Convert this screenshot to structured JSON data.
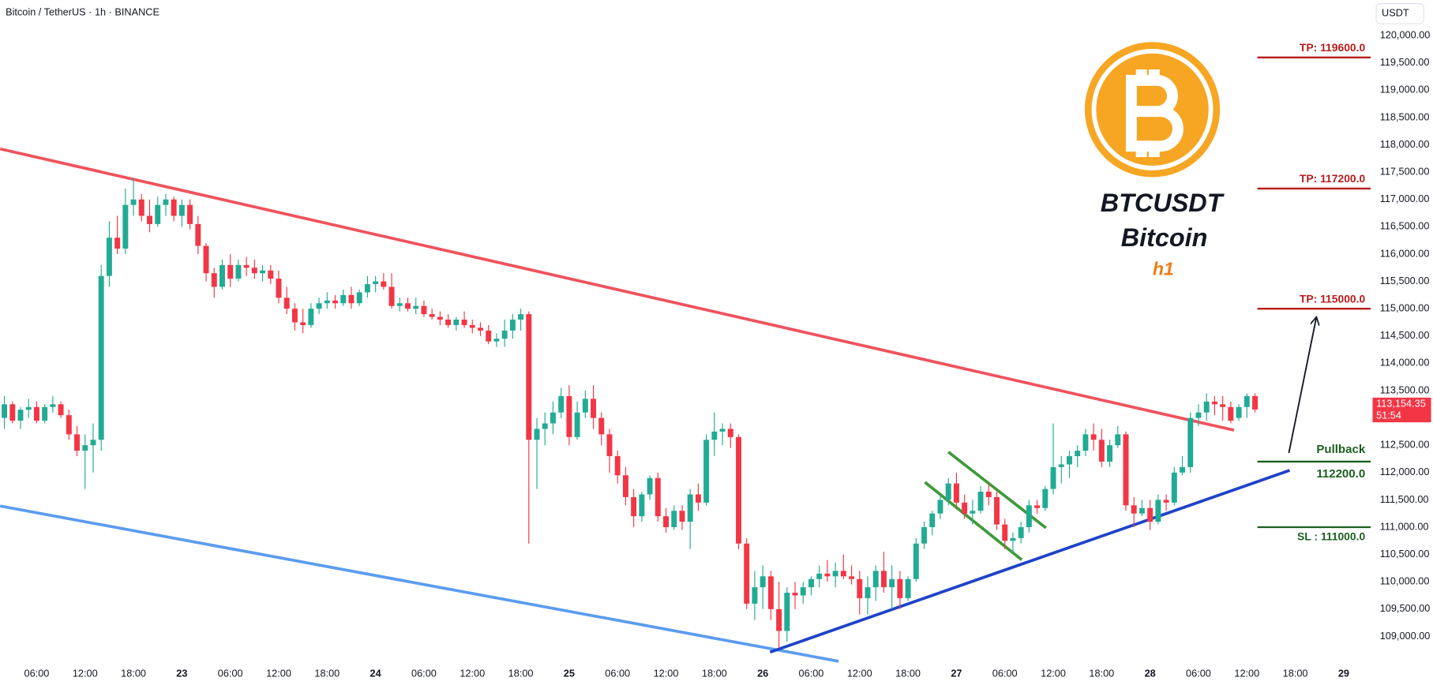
{
  "chart_data": {
    "type": "candlestick",
    "title": "Bitcoin / TetherUS · 1h · BINANCE",
    "currency": "USDT",
    "up_color": "#22ab94",
    "down_color": "#f23645",
    "xlim": [
      1.47,
      171.35
    ],
    "ylim": [
      108495,
      120652
    ],
    "grid": false,
    "xticks": [
      {
        "value": 6,
        "label": "06:00"
      },
      {
        "value": 12,
        "label": "12:00"
      },
      {
        "value": 18,
        "label": "18:00"
      },
      {
        "value": 24,
        "label": "23"
      },
      {
        "value": 30,
        "label": "06:00"
      },
      {
        "value": 36,
        "label": "12:00"
      },
      {
        "value": 42,
        "label": "18:00"
      },
      {
        "value": 48,
        "label": "24"
      },
      {
        "value": 54,
        "label": "06:00"
      },
      {
        "value": 60,
        "label": "12:00"
      },
      {
        "value": 66,
        "label": "18:00"
      },
      {
        "value": 72,
        "label": "25"
      },
      {
        "value": 78,
        "label": "06:00"
      },
      {
        "value": 84,
        "label": "12:00"
      },
      {
        "value": 90,
        "label": "18:00"
      },
      {
        "value": 96,
        "label": "26"
      },
      {
        "value": 102,
        "label": "06:00"
      },
      {
        "value": 108,
        "label": "12:00"
      },
      {
        "value": 114,
        "label": "18:00"
      },
      {
        "value": 120,
        "label": "27"
      },
      {
        "value": 126,
        "label": "06:00"
      },
      {
        "value": 132,
        "label": "12:00"
      },
      {
        "value": 138,
        "label": "18:00"
      },
      {
        "value": 144,
        "label": "28"
      },
      {
        "value": 150,
        "label": "06:00"
      },
      {
        "value": 156,
        "label": "12:00"
      },
      {
        "value": 162,
        "label": "18:00"
      },
      {
        "value": 168,
        "label": "29"
      }
    ],
    "yticks": [
      {
        "value": 120000,
        "label": "120,000.00"
      },
      {
        "value": 119500,
        "label": "119,500.00"
      },
      {
        "value": 119000,
        "label": "119,000.00"
      },
      {
        "value": 118500,
        "label": "118,500.00"
      },
      {
        "value": 118000,
        "label": "118,000.00"
      },
      {
        "value": 117500,
        "label": "117,500.00"
      },
      {
        "value": 117000,
        "label": "117,000.00"
      },
      {
        "value": 116500,
        "label": "116,500.00"
      },
      {
        "value": 116000,
        "label": "116,000.00"
      },
      {
        "value": 115500,
        "label": "115,500.00"
      },
      {
        "value": 115000,
        "label": "115,000.00"
      },
      {
        "value": 114500,
        "label": "114,500.00"
      },
      {
        "value": 114000,
        "label": "114,000.00"
      },
      {
        "value": 113500,
        "label": "113,500.00"
      },
      {
        "value": 113000,
        "label": "113,000.00"
      },
      {
        "value": 112500,
        "label": "112,500.00"
      },
      {
        "value": 112000,
        "label": "112,000.00"
      },
      {
        "value": 111500,
        "label": "111,500.00"
      },
      {
        "value": 111000,
        "label": "111,000.00"
      },
      {
        "value": 110500,
        "label": "110,500.00"
      },
      {
        "value": 110000,
        "label": "110,000.00"
      },
      {
        "value": 109500,
        "label": "109,500.00"
      },
      {
        "value": 109000,
        "label": "109,000.00"
      }
    ],
    "x": [
      2,
      3,
      4,
      5,
      6,
      7,
      8,
      9,
      10,
      11,
      12,
      13,
      14,
      15,
      16,
      17,
      18,
      19,
      20,
      21,
      22,
      23,
      24,
      25,
      26,
      27,
      28,
      29,
      30,
      31,
      32,
      33,
      34,
      35,
      36,
      37,
      38,
      39,
      40,
      41,
      42,
      43,
      44,
      45,
      46,
      47,
      48,
      49,
      50,
      51,
      52,
      53,
      54,
      55,
      56,
      57,
      58,
      59,
      60,
      61,
      62,
      63,
      64,
      65,
      66,
      67,
      68,
      69,
      70,
      71,
      72,
      73,
      74,
      75,
      76,
      77,
      78,
      79,
      80,
      81,
      82,
      83,
      84,
      85,
      86,
      87,
      88,
      89,
      90,
      91,
      92,
      93,
      94,
      95,
      96,
      97,
      98,
      99,
      100,
      101,
      102,
      103,
      104,
      105,
      106,
      107,
      108,
      109,
      110,
      111,
      112,
      113,
      114,
      115,
      116,
      117,
      118,
      119,
      120,
      121,
      122,
      123,
      124,
      125,
      126,
      127,
      128,
      129,
      130,
      131,
      132,
      133,
      134,
      135,
      136,
      137,
      138,
      139,
      140,
      141,
      142,
      143,
      144,
      145,
      146,
      147,
      148,
      149,
      150,
      151,
      152,
      153,
      154,
      155,
      156,
      157
    ],
    "open": [
      113000,
      113250,
      112950,
      113150,
      113200,
      112950,
      113200,
      113250,
      113050,
      112700,
      112400,
      112500,
      112600,
      115600,
      116300,
      116100,
      116900,
      117000,
      116700,
      116550,
      116900,
      117000,
      116700,
      116900,
      116550,
      116150,
      115650,
      115400,
      115800,
      115550,
      115800,
      115750,
      115650,
      115700,
      115550,
      115200,
      115000,
      114750,
      114700,
      115000,
      115100,
      115150,
      115100,
      115250,
      115100,
      115300,
      115450,
      115500,
      115400,
      115050,
      115100,
      115000,
      115050,
      114900,
      114850,
      114800,
      114700,
      114800,
      114700,
      114650,
      114600,
      114400,
      114450,
      114600,
      114800,
      114900,
      112600,
      112800,
      112900,
      113100,
      113400,
      112650,
      113100,
      113350,
      113000,
      112700,
      112300,
      111950,
      111550,
      111200,
      111600,
      111900,
      111200,
      111000,
      111300,
      111100,
      111600,
      111450,
      112600,
      112750,
      112800,
      112650,
      110700,
      109600,
      109900,
      110100,
      109500,
      109100,
      109800,
      109750,
      109900,
      110050,
      110150,
      110100,
      110200,
      110100,
      110050,
      109700,
      109900,
      110200,
      109900,
      110050,
      109700,
      110050,
      110700,
      111000,
      111250,
      111500,
      111800,
      111450,
      111250,
      111300,
      111650,
      111550,
      111050,
      110750,
      110800,
      111000,
      111400,
      111350,
      111700,
      112100,
      112150,
      112300,
      112400,
      112700,
      112600,
      112200,
      112500,
      112700,
      111400,
      111250,
      111350,
      111100,
      111500,
      111450,
      112000,
      112100,
      113000,
      113100,
      113300,
      113250,
      113200,
      113000,
      113200,
      113400
    ],
    "high": [
      113400,
      113300,
      113200,
      113350,
      113300,
      113250,
      113400,
      113300,
      113150,
      112850,
      112700,
      112900,
      115800,
      116600,
      116700,
      117200,
      117400,
      117100,
      117000,
      117050,
      117100,
      117050,
      117000,
      117000,
      116700,
      116200,
      115750,
      115900,
      116000,
      115900,
      115950,
      115900,
      115800,
      115800,
      115700,
      115400,
      115100,
      115000,
      115100,
      115200,
      115300,
      115250,
      115350,
      115400,
      115350,
      115600,
      115600,
      115650,
      115650,
      115200,
      115200,
      115200,
      115150,
      115000,
      114950,
      114900,
      114850,
      114950,
      114800,
      114750,
      114700,
      114550,
      114800,
      114900,
      115000,
      114950,
      113000,
      113100,
      113300,
      113550,
      113600,
      113300,
      113500,
      113600,
      113100,
      112800,
      112400,
      112100,
      111700,
      111650,
      111950,
      112000,
      111350,
      111400,
      111400,
      111700,
      111800,
      112700,
      113100,
      112900,
      112900,
      112700,
      110800,
      110200,
      110300,
      110200,
      110000,
      109900,
      110000,
      110000,
      110100,
      110300,
      110400,
      110350,
      110500,
      110300,
      110200,
      110100,
      110300,
      110550,
      110300,
      110200,
      110100,
      110800,
      111100,
      111300,
      111600,
      111900,
      112000,
      111600,
      111500,
      111750,
      111800,
      111650,
      111150,
      110900,
      111100,
      111500,
      111500,
      111750,
      112900,
      112300,
      112400,
      112500,
      112800,
      112900,
      112800,
      112600,
      112850,
      112750,
      111550,
      111500,
      111500,
      111600,
      111600,
      112100,
      112300,
      113100,
      113250,
      113450,
      113400,
      113400,
      113300,
      113250,
      113450,
      113450
    ],
    "low": [
      112800,
      112900,
      112800,
      113000,
      112900,
      112900,
      113100,
      113000,
      112600,
      112300,
      111700,
      112000,
      112400,
      115400,
      116000,
      116000,
      116700,
      116600,
      116400,
      116500,
      116700,
      116600,
      116500,
      116450,
      116000,
      115500,
      115200,
      115350,
      115400,
      115500,
      115600,
      115550,
      115500,
      115450,
      115100,
      114900,
      114600,
      114550,
      114650,
      114900,
      115000,
      115000,
      115050,
      115000,
      115050,
      115200,
      115300,
      115350,
      115000,
      114950,
      114950,
      114900,
      114850,
      114800,
      114700,
      114650,
      114600,
      114650,
      114550,
      114500,
      114350,
      114300,
      114300,
      114450,
      114600,
      110700,
      111700,
      112500,
      112700,
      113000,
      112500,
      112600,
      113000,
      112800,
      112500,
      112000,
      111800,
      111400,
      111000,
      111100,
      111500,
      111100,
      110900,
      110950,
      110950,
      110600,
      111300,
      111400,
      112300,
      112500,
      112450,
      110600,
      109500,
      109300,
      109500,
      109300,
      108800,
      108900,
      109500,
      109600,
      109750,
      109900,
      110000,
      109900,
      110050,
      109950,
      109400,
      109400,
      109650,
      109800,
      109500,
      109500,
      109650,
      110000,
      110600,
      110850,
      111150,
      111400,
      111350,
      111150,
      111050,
      111250,
      111400,
      110950,
      110600,
      110550,
      110700,
      110900,
      111250,
      111300,
      111600,
      111800,
      111900,
      112100,
      112300,
      112400,
      112100,
      112100,
      112450,
      111300,
      111000,
      111200,
      110950,
      111050,
      111300,
      111400,
      111950,
      112000,
      112850,
      112950,
      113050,
      112950,
      112900,
      112950,
      113000,
      113100
    ],
    "close": [
      113250,
      112950,
      113150,
      113200,
      112950,
      113200,
      113250,
      113050,
      112700,
      112400,
      112500,
      112600,
      115600,
      116300,
      116100,
      116900,
      117000,
      116700,
      116550,
      116900,
      117000,
      116700,
      116900,
      116550,
      116150,
      115650,
      115400,
      115800,
      115550,
      115800,
      115750,
      115650,
      115700,
      115550,
      115200,
      115000,
      114750,
      114700,
      115000,
      115100,
      115150,
      115100,
      115250,
      115100,
      115300,
      115450,
      115500,
      115400,
      115050,
      115100,
      115000,
      115050,
      114900,
      114850,
      114800,
      114700,
      114800,
      114700,
      114650,
      114600,
      114400,
      114450,
      114600,
      114800,
      114900,
      112600,
      112800,
      112900,
      113100,
      113400,
      112650,
      113100,
      113350,
      113000,
      112700,
      112300,
      111950,
      111550,
      111200,
      111600,
      111900,
      111200,
      111000,
      111300,
      111100,
      111600,
      111450,
      112600,
      112750,
      112800,
      112650,
      110700,
      109600,
      109900,
      110100,
      109500,
      109100,
      109800,
      109750,
      109900,
      110050,
      110150,
      110100,
      110200,
      110100,
      110050,
      109700,
      109900,
      110200,
      109900,
      110050,
      109700,
      110050,
      110700,
      111000,
      111250,
      111500,
      111800,
      111450,
      111250,
      111300,
      111650,
      111550,
      111050,
      110750,
      110800,
      111000,
      111400,
      111350,
      111700,
      112100,
      112150,
      112300,
      112400,
      112700,
      112600,
      112200,
      112500,
      112700,
      111400,
      111250,
      111350,
      111100,
      111500,
      111450,
      112000,
      112100,
      113000,
      113100,
      113300,
      113250,
      113200,
      112950,
      113200,
      113400,
      113154.35
    ],
    "trendlines": [
      {
        "color": "#f0525c",
        "x": [
          1.47,
          154.4
        ],
        "y": [
          117926,
          112776
        ]
      },
      {
        "color": "#5b9cf0",
        "x": [
          1.47,
          105.4
        ],
        "y": [
          111388,
          108545
        ]
      },
      {
        "color": "#1e43c8",
        "x": [
          96.9,
          161.3
        ],
        "y": [
          108712,
          112040
        ]
      },
      {
        "color": "#3f9a3a",
        "x": [
          119.0,
          131.1
        ],
        "y": [
          112375,
          110987
        ]
      },
      {
        "color": "#3f9a3a",
        "x": [
          116.1,
          128.1
        ],
        "y": [
          111823,
          110401
        ]
      },
      {
        "color": "#131722",
        "x": [
          161.2,
          164.6
        ],
        "y": [
          112358,
          114833
        ],
        "arrow": true
      }
    ],
    "take_profits": [
      {
        "value": 119600,
        "label": "TP: 119600.0"
      },
      {
        "value": 117200,
        "label": "TP: 117200.0"
      },
      {
        "value": 115000,
        "label": "TP: 115000.0"
      }
    ],
    "pullback": {
      "title": "Pullback",
      "value": 112200,
      "label": "112200.0"
    },
    "stop_loss": {
      "value": 111000,
      "label": "SL : 111000.0"
    },
    "level_x": [
      157.3,
      171.35
    ],
    "tp_color": "#b71c1c",
    "entry_color": "#1b5e20",
    "last_price": {
      "value": 113154.35,
      "label": "113,154.35",
      "countdown": "51:54"
    },
    "logo": {
      "ticker": "BTCUSDT",
      "name": "Bitcoin",
      "interval": "h1"
    }
  }
}
